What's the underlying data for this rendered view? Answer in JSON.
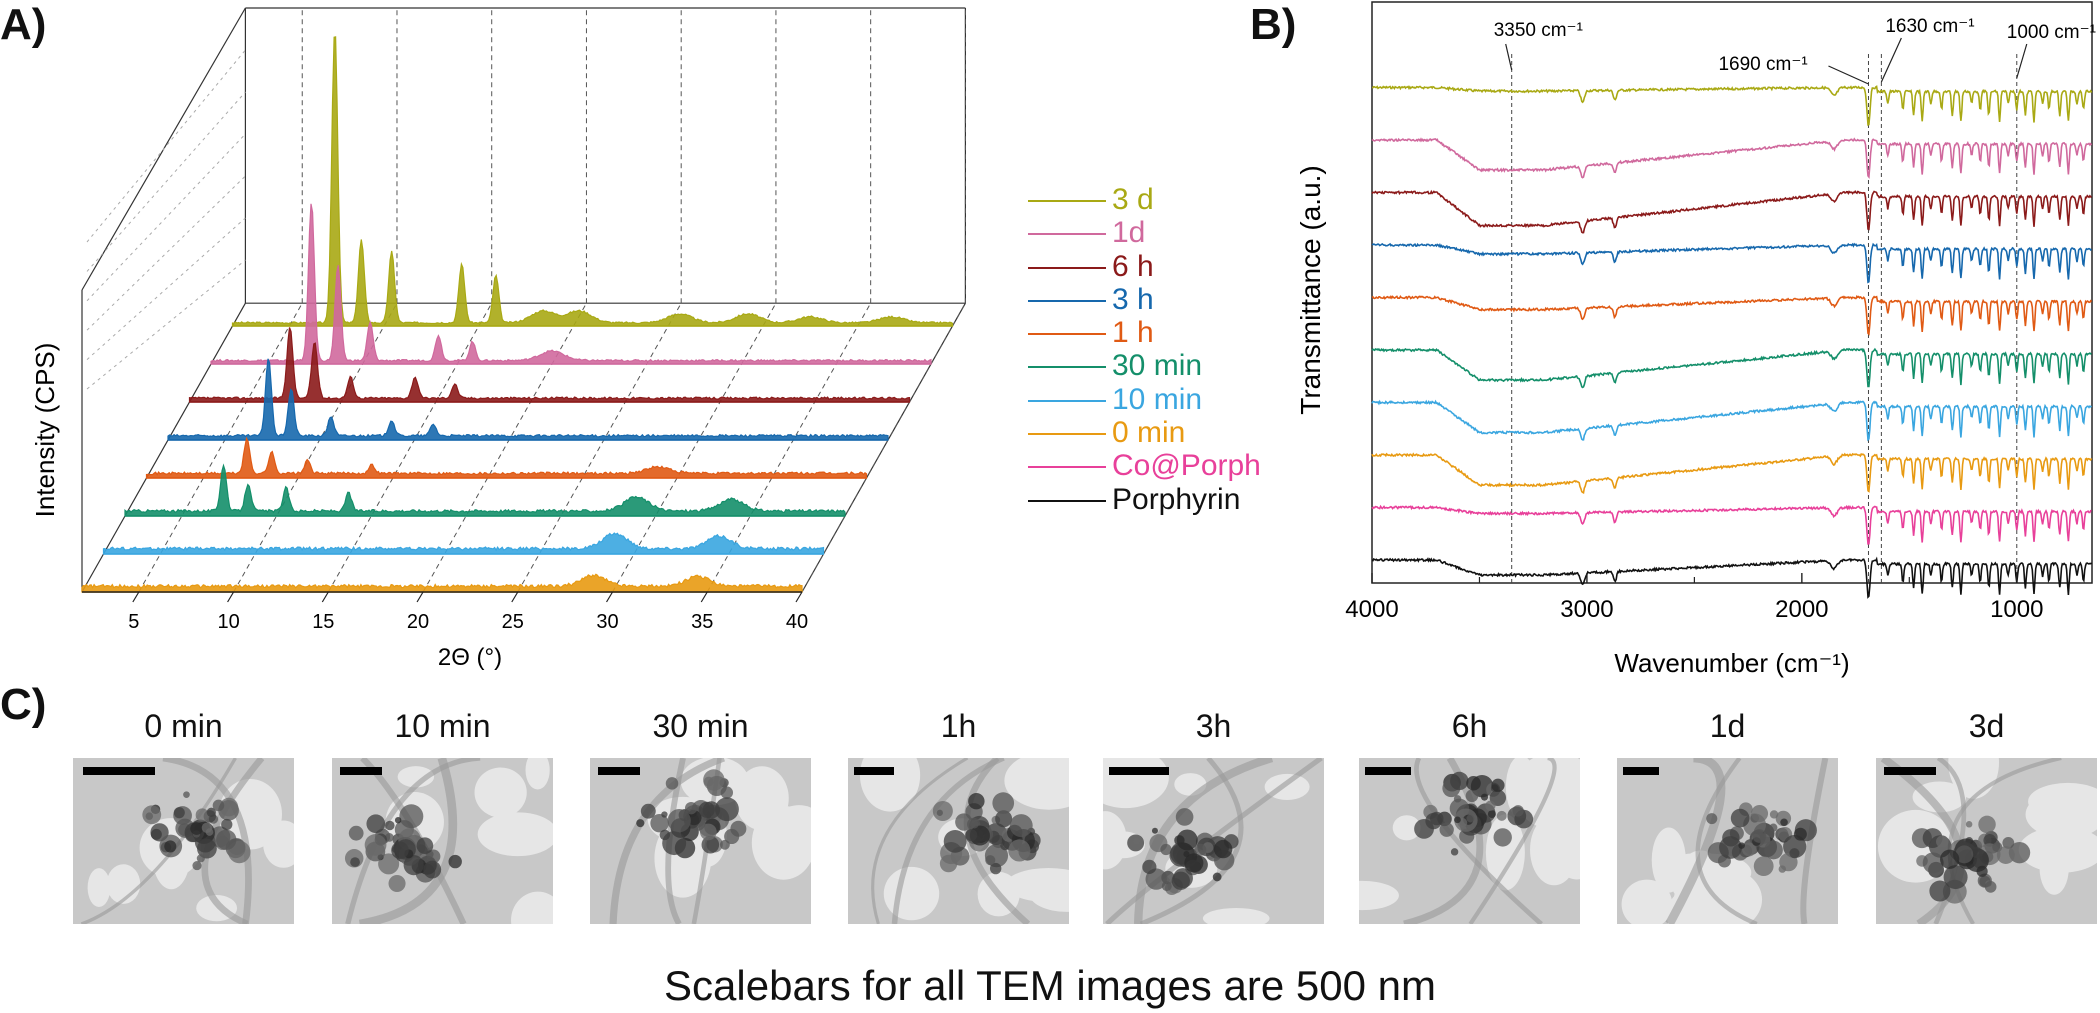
{
  "panels": {
    "a": "A)",
    "b": "B)",
    "c": "C)"
  },
  "chart_data": [
    {
      "type": "line",
      "panel": "A)",
      "xlabel": "2Θ (°)",
      "ylabel": "Intensity (CPS)",
      "xlim": [
        2,
        40
      ],
      "xticks": [
        5,
        10,
        15,
        20,
        25,
        30,
        35,
        40
      ],
      "legend_position": "right",
      "series": [
        {
          "name": "3 d",
          "color": "#a9a914",
          "filled": true,
          "peaks": [
            [
              7.4,
              1.0
            ],
            [
              8.8,
              0.28
            ],
            [
              10.4,
              0.24
            ],
            [
              14.1,
              0.2
            ],
            [
              15.9,
              0.16
            ],
            [
              18.4,
              0.04
            ],
            [
              20.3,
              0.04
            ],
            [
              25.6,
              0.03
            ],
            [
              29.2,
              0.03
            ],
            [
              32.5,
              0.02
            ],
            [
              36.8,
              0.02
            ]
          ]
        },
        {
          "name": "1d",
          "color": "#d0699d",
          "filled": true,
          "peaks": [
            [
              7.3,
              0.5
            ],
            [
              8.7,
              0.3
            ],
            [
              10.4,
              0.12
            ],
            [
              14.0,
              0.08
            ],
            [
              15.8,
              0.06
            ],
            [
              20.0,
              0.03
            ]
          ]
        },
        {
          "name": "6 h",
          "color": "#8b1a1a",
          "filled": true,
          "peaks": [
            [
              7.3,
              0.2
            ],
            [
              8.6,
              0.16
            ],
            [
              10.5,
              0.06
            ],
            [
              13.9,
              0.06
            ],
            [
              16.0,
              0.04
            ]
          ]
        },
        {
          "name": "3 h",
          "color": "#1668ad",
          "filled": true,
          "peaks": [
            [
              7.3,
              0.2
            ],
            [
              8.5,
              0.12
            ],
            [
              10.6,
              0.05
            ],
            [
              13.8,
              0.04
            ],
            [
              16.0,
              0.03
            ]
          ]
        },
        {
          "name": "1 h",
          "color": "#e05a14",
          "filled": true,
          "peaks": [
            [
              7.3,
              0.08
            ],
            [
              8.6,
              0.05
            ],
            [
              10.5,
              0.03
            ],
            [
              13.9,
              0.02
            ],
            [
              29.0,
              0.015
            ]
          ]
        },
        {
          "name": "30 min",
          "color": "#148f6a",
          "filled": true,
          "peaks": [
            [
              7.2,
              0.1
            ],
            [
              8.5,
              0.06
            ],
            [
              10.5,
              0.05
            ],
            [
              13.8,
              0.04
            ],
            [
              29.0,
              0.03
            ],
            [
              34.0,
              0.025
            ]
          ]
        },
        {
          "name": "10 min",
          "color": "#3aa6e0",
          "filled": true,
          "peaks": [
            [
              29.0,
              0.03
            ],
            [
              34.5,
              0.025
            ]
          ]
        },
        {
          "name": "0 min",
          "color": "#e89a12",
          "filled": true,
          "peaks": [
            [
              29.0,
              0.02
            ],
            [
              34.5,
              0.018
            ]
          ]
        }
      ]
    },
    {
      "type": "line",
      "panel": "B)",
      "xlabel": "Wavenumber (cm⁻¹)",
      "ylabel": "Transmittance (a.u.)",
      "xlim": [
        4000,
        650
      ],
      "xticks": [
        4000,
        3000,
        2000,
        1000
      ],
      "annotations": [
        {
          "label": "3350 cm⁻¹",
          "x": 3350
        },
        {
          "label": "1690 cm⁻¹",
          "x": 1690
        },
        {
          "label": "1630 cm⁻¹",
          "x": 1630
        },
        {
          "label": "1000 cm⁻¹",
          "x": 1000
        }
      ],
      "series": [
        {
          "name": "3 d",
          "color": "#a9a914",
          "offset": 9,
          "broad": 0.06
        },
        {
          "name": "1d",
          "color": "#d0699d",
          "offset": 8,
          "broad": 0.5
        },
        {
          "name": "6 h",
          "color": "#8b1a1a",
          "offset": 7,
          "broad": 0.55
        },
        {
          "name": "3 h",
          "color": "#1668ad",
          "offset": 6,
          "broad": 0.15
        },
        {
          "name": "1 h",
          "color": "#e05a14",
          "offset": 5,
          "broad": 0.2
        },
        {
          "name": "30 min",
          "color": "#148f6a",
          "offset": 4,
          "broad": 0.5
        },
        {
          "name": "10 min",
          "color": "#3aa6e0",
          "offset": 3,
          "broad": 0.5
        },
        {
          "name": "0 min",
          "color": "#e89a12",
          "offset": 2,
          "broad": 0.5
        },
        {
          "name": "Co@Porph",
          "color": "#e8409a",
          "offset": 1,
          "broad": 0.1
        },
        {
          "name": "Porphyrin",
          "color": "#111111",
          "offset": 0,
          "broad": 0.25
        }
      ]
    }
  ],
  "legend": [
    {
      "label": "3 d",
      "color": "#a9a914"
    },
    {
      "label": "1d",
      "color": "#d0699d"
    },
    {
      "label": "6 h",
      "color": "#8b1a1a"
    },
    {
      "label": "3 h",
      "color": "#1668ad"
    },
    {
      "label": "1 h",
      "color": "#e05a14"
    },
    {
      "label": "30 min",
      "color": "#148f6a"
    },
    {
      "label": "10 min",
      "color": "#3aa6e0"
    },
    {
      "label": "0 min",
      "color": "#e89a12"
    },
    {
      "label": "Co@Porph",
      "color": "#e8409a"
    },
    {
      "label": "Porphyrin",
      "color": "#111111"
    }
  ],
  "tem": {
    "titles": [
      "0 min",
      "10 min",
      "30 min",
      "1h",
      "3h",
      "6h",
      "1d",
      "3d"
    ],
    "caption": "Scalebars for all TEM images are 500 nm"
  }
}
